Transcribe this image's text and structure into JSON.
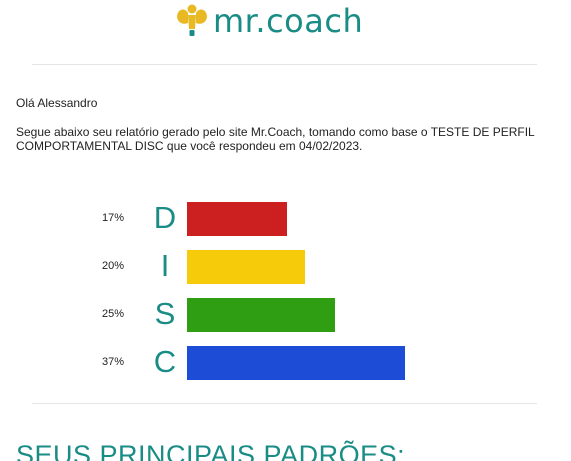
{
  "header": {
    "logo_text": "mr.coach",
    "brand_color": "#1a8c86",
    "logo_icon_color": "#e8b923"
  },
  "body": {
    "greeting": "Olá Alessandro",
    "intro": "Segue abaixo seu relatório gerado pelo site Mr.Coach, tomando como base o TESTE DE PERFIL COMPORTAMENTAL DISC que você respondeu em 04/02/2023."
  },
  "chart_data": {
    "type": "bar",
    "categories": [
      "D",
      "I",
      "S",
      "C"
    ],
    "values": [
      17,
      20,
      25,
      37
    ],
    "labels": [
      "17%",
      "20%",
      "25%",
      "37%"
    ],
    "colors": [
      "#cc1f1f",
      "#f5cb0a",
      "#2f9e12",
      "#1d4cd6"
    ]
  },
  "section": {
    "title": "SEUS PRINCIPAIS PADRÕES:"
  }
}
